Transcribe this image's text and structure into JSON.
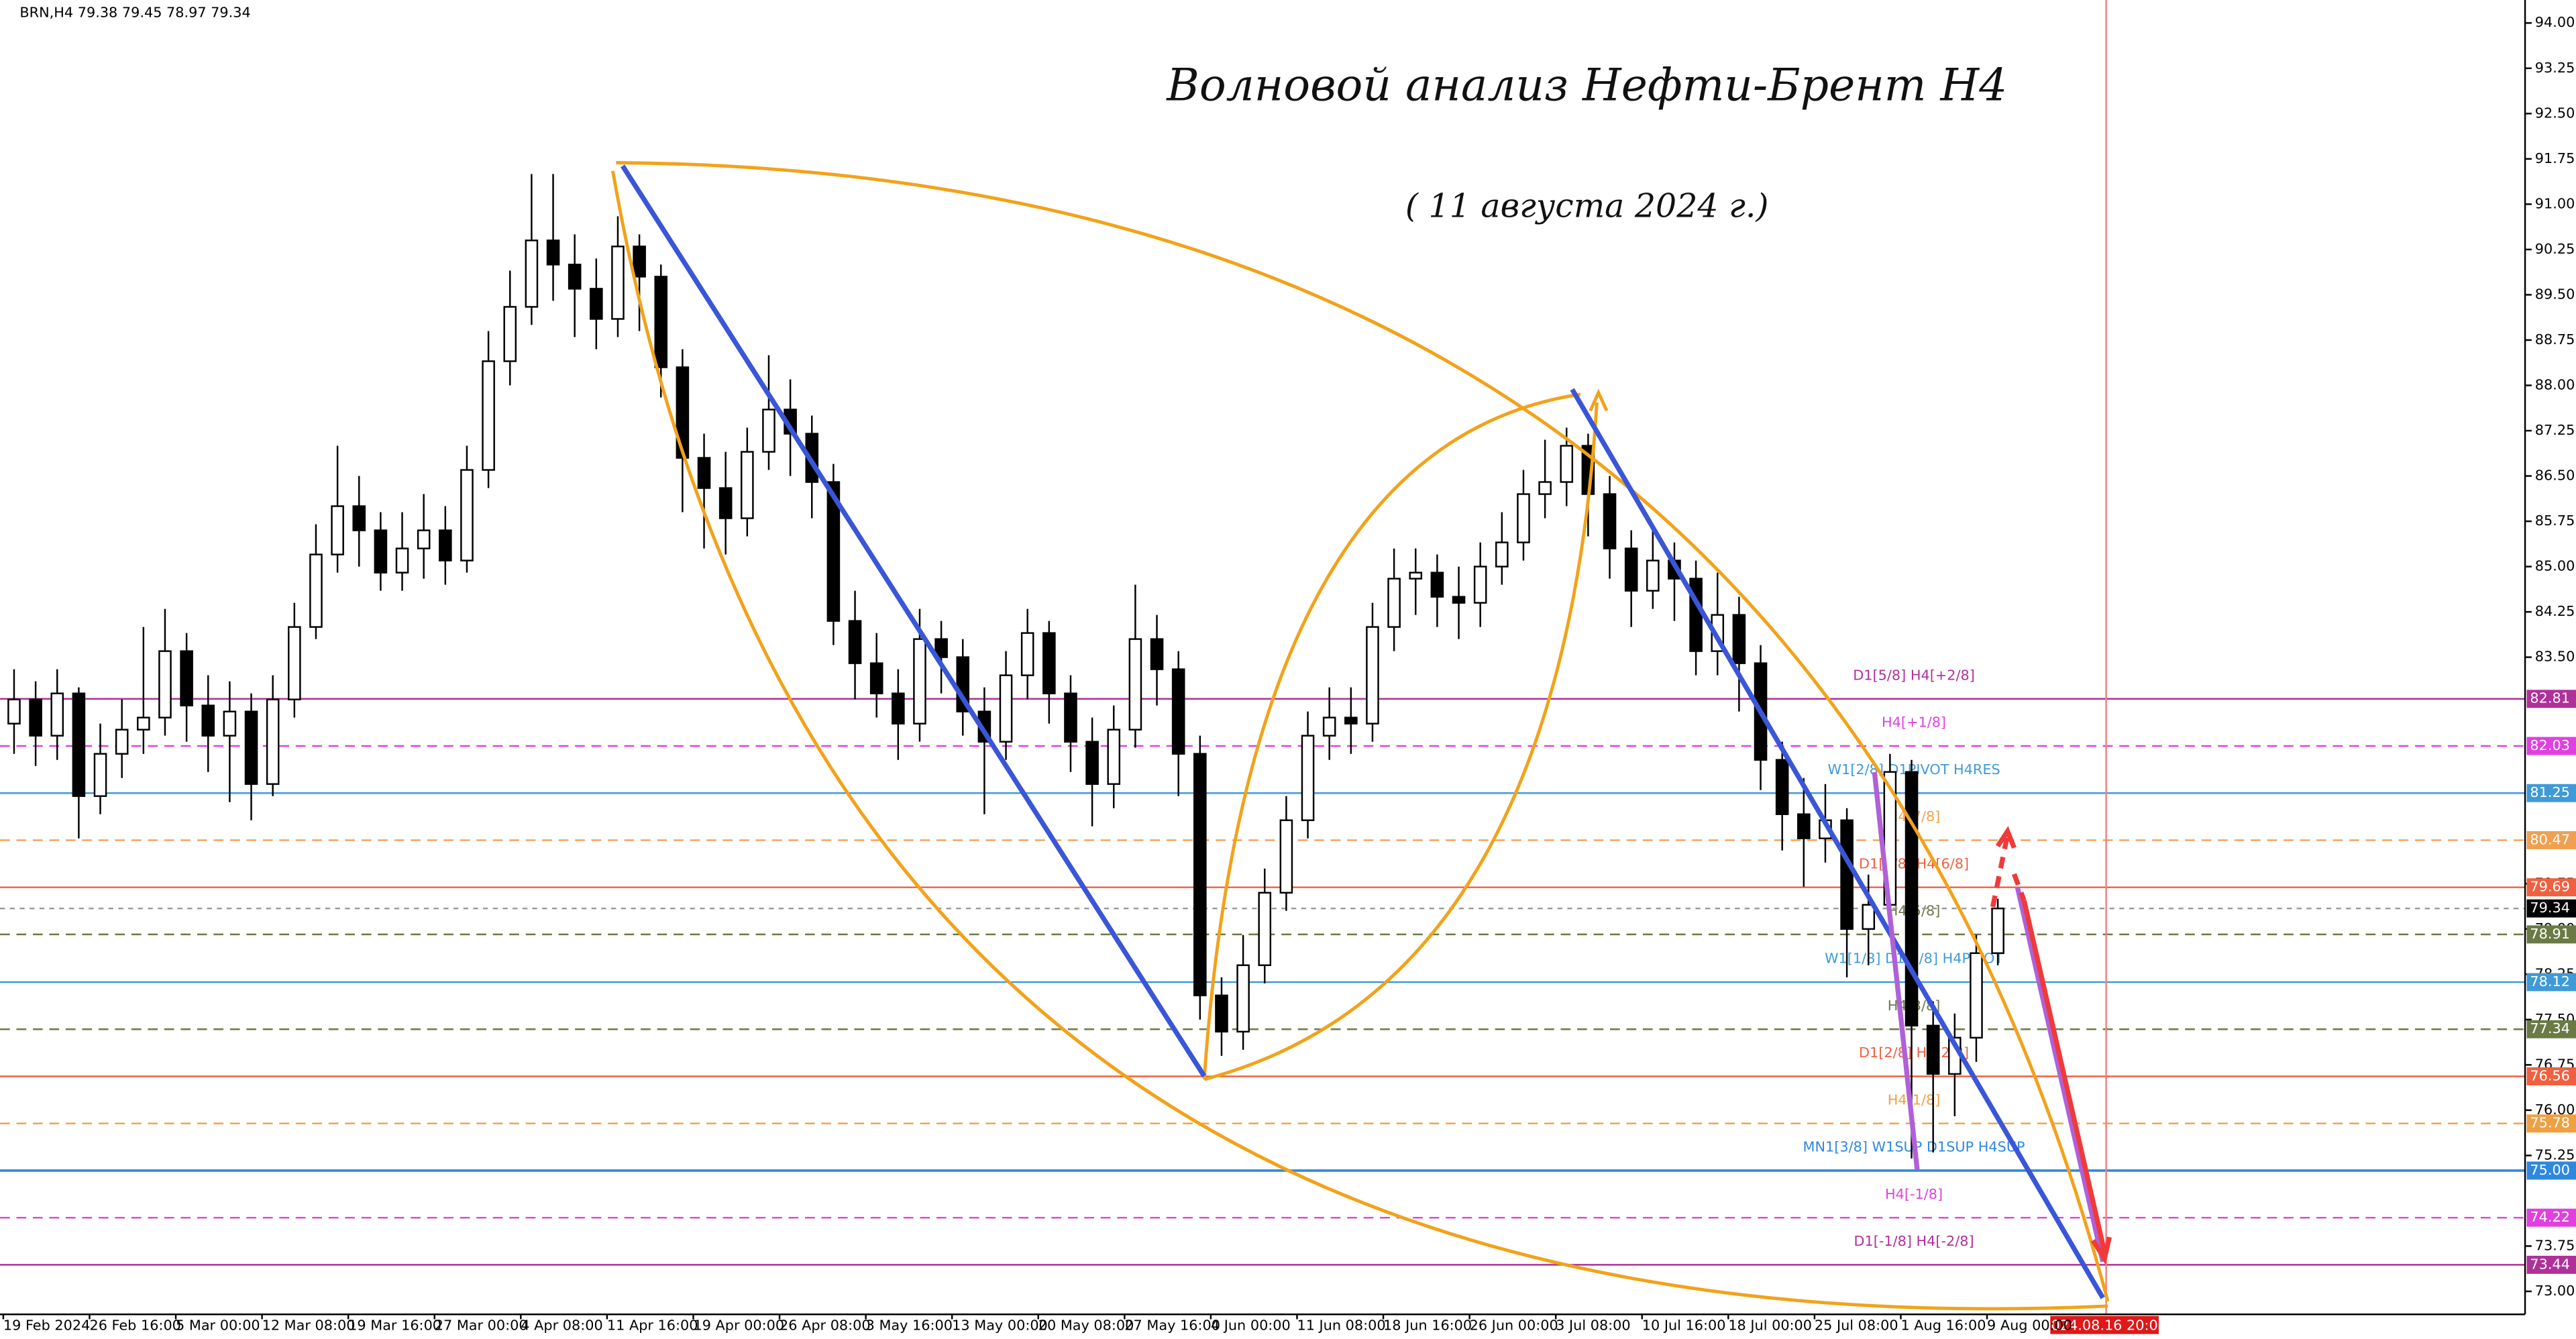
{
  "chart_data": {
    "type": "candlestick",
    "header": "BRN,H4  79.38 79.45 78.97 79.34",
    "title": "Волновой анализ Нефти-Брент H4",
    "subtitle": "( 11 августа 2024 г.)",
    "cursor_label": "2024.08.16 20:00",
    "categories": [
      "19 Feb 2024",
      null,
      null,
      null,
      "26 Feb 16:00",
      null,
      null,
      null,
      "5 Mar 00:00",
      null,
      null,
      null,
      "12 Mar 08:00",
      null,
      null,
      null,
      "19 Mar 16:00",
      null,
      null,
      null,
      "27 Mar 00:00",
      null,
      null,
      null,
      "4 Apr 08:00",
      null,
      null,
      null,
      "11 Apr 16:00",
      null,
      null,
      null,
      "19 Apr 00:00",
      null,
      null,
      null,
      "26 Apr 08:00",
      null,
      null,
      null,
      "3 May 16:00",
      null,
      null,
      null,
      "13 May 00:00",
      null,
      null,
      null,
      "20 May 08:00",
      null,
      null,
      null,
      "27 May 16:00",
      null,
      null,
      null,
      "4 Jun 00:00",
      null,
      null,
      null,
      "11 Jun 08:00",
      null,
      null,
      null,
      "18 Jun 16:00",
      null,
      null,
      null,
      "26 Jun 00:00",
      null,
      null,
      null,
      "3 Jul 08:00",
      null,
      null,
      null,
      "10 Jul 16:00",
      null,
      null,
      null,
      "18 Jul 00:00",
      null,
      null,
      null,
      "25 Jul 08:00",
      null,
      null,
      null,
      "1 Aug 16:00",
      null,
      null,
      null,
      "9 Aug 00:00"
    ],
    "open": [
      82.4,
      82.8,
      82.2,
      82.9,
      81.2,
      81.9,
      82.3,
      82.5,
      83.6,
      82.7,
      82.2,
      82.6,
      81.4,
      82.8,
      84.0,
      85.2,
      86.0,
      85.6,
      84.9,
      85.3,
      85.6,
      85.1,
      86.6,
      88.4,
      89.3,
      90.4,
      90.0,
      89.6,
      89.1,
      90.3,
      89.8,
      88.3,
      86.8,
      86.3,
      85.8,
      86.9,
      87.6,
      87.2,
      86.4,
      84.1,
      83.4,
      82.9,
      82.4,
      83.8,
      83.5,
      82.6,
      82.1,
      83.2,
      83.9,
      82.9,
      82.1,
      81.4,
      82.3,
      83.8,
      83.3,
      81.9,
      77.9,
      77.3,
      78.4,
      79.6,
      80.8,
      82.2,
      82.5,
      82.4,
      84.0,
      84.8,
      84.9,
      84.5,
      84.4,
      85.0,
      85.4,
      86.2,
      86.4,
      87.0,
      86.2,
      85.3,
      84.6,
      85.1,
      84.8,
      83.6,
      84.2,
      83.4,
      81.8,
      80.9,
      80.5,
      80.8,
      79.0,
      79.4,
      81.6,
      77.4,
      76.6,
      77.2,
      78.6
    ],
    "high": [
      83.3,
      83.1,
      83.3,
      83.0,
      82.4,
      82.8,
      84.0,
      84.3,
      83.9,
      83.2,
      83.1,
      82.9,
      83.2,
      84.4,
      85.7,
      87.0,
      86.5,
      85.9,
      85.9,
      86.2,
      86.0,
      87.0,
      88.9,
      89.9,
      91.5,
      91.5,
      90.5,
      90.1,
      90.8,
      90.5,
      90.0,
      88.6,
      87.2,
      86.9,
      87.3,
      88.5,
      88.1,
      87.5,
      86.7,
      84.6,
      83.9,
      83.3,
      84.3,
      84.1,
      83.8,
      83.0,
      83.6,
      84.3,
      84.1,
      83.2,
      82.5,
      82.7,
      84.7,
      84.2,
      83.6,
      82.2,
      78.2,
      78.9,
      80.0,
      81.2,
      82.6,
      83.0,
      83.0,
      84.4,
      85.3,
      85.3,
      85.2,
      85.0,
      85.4,
      85.9,
      86.6,
      87.1,
      87.3,
      87.2,
      86.5,
      85.6,
      85.6,
      85.4,
      85.1,
      84.9,
      84.5,
      83.7,
      82.1,
      81.5,
      81.4,
      81.0,
      79.9,
      81.9,
      81.8,
      77.8,
      77.6,
      78.9,
      79.5
    ],
    "low": [
      81.9,
      81.7,
      81.8,
      80.5,
      80.9,
      81.5,
      81.9,
      82.2,
      82.1,
      81.6,
      81.1,
      80.8,
      81.2,
      82.5,
      83.8,
      84.9,
      85.0,
      84.6,
      84.6,
      84.8,
      84.7,
      84.9,
      86.3,
      88.0,
      89.0,
      89.4,
      88.8,
      88.6,
      88.8,
      88.9,
      87.8,
      85.9,
      85.3,
      85.2,
      85.5,
      86.6,
      86.5,
      85.8,
      83.7,
      82.8,
      82.5,
      81.8,
      82.1,
      82.9,
      82.2,
      80.9,
      81.8,
      82.8,
      82.4,
      81.6,
      80.7,
      81.0,
      82.0,
      82.7,
      81.2,
      77.5,
      76.9,
      77.0,
      78.1,
      79.3,
      80.5,
      81.8,
      81.9,
      82.1,
      83.6,
      84.2,
      84.0,
      83.8,
      84.0,
      84.7,
      85.1,
      85.8,
      86.0,
      85.5,
      84.8,
      84.0,
      84.3,
      84.1,
      83.2,
      83.2,
      82.6,
      81.3,
      80.3,
      79.7,
      80.1,
      78.2,
      78.4,
      79.1,
      75.2,
      75.3,
      75.9,
      76.8,
      78.4
    ],
    "close": [
      82.8,
      82.2,
      82.9,
      81.2,
      81.9,
      82.3,
      82.5,
      83.6,
      82.7,
      82.2,
      82.6,
      81.4,
      82.8,
      84.0,
      85.2,
      86.0,
      85.6,
      84.9,
      85.3,
      85.6,
      85.1,
      86.6,
      88.4,
      89.3,
      90.4,
      90.0,
      89.6,
      89.1,
      90.3,
      89.8,
      88.3,
      86.8,
      86.3,
      85.8,
      86.9,
      87.6,
      87.2,
      86.4,
      84.1,
      83.4,
      82.9,
      82.4,
      83.8,
      83.5,
      82.6,
      82.1,
      83.2,
      83.9,
      82.9,
      82.1,
      81.4,
      82.3,
      83.8,
      83.3,
      81.9,
      77.9,
      77.3,
      78.4,
      79.6,
      80.8,
      82.2,
      82.5,
      82.4,
      84.0,
      84.8,
      84.9,
      84.5,
      84.4,
      85.0,
      85.4,
      86.2,
      86.4,
      87.0,
      86.2,
      85.3,
      84.6,
      85.1,
      84.8,
      83.6,
      84.2,
      83.4,
      81.8,
      80.9,
      80.5,
      80.8,
      79.0,
      79.4,
      81.6,
      77.4,
      76.6,
      77.2,
      78.6,
      79.34
    ],
    "ylim": [
      72.62,
      94.38
    ],
    "yticks": [
      {
        "value": 94,
        "label": "94.00"
      },
      93.25,
      {
        "value": 92.5,
        "label": "92.50"
      },
      91.75,
      {
        "value": 91,
        "label": "91.00"
      },
      90.25,
      {
        "value": 89.5,
        "label": "89.50"
      },
      88.75,
      {
        "value": 88,
        "label": "88.00"
      },
      87.25,
      {
        "value": 86.5,
        "label": "86.50"
      },
      85.75,
      {
        "value": 85,
        "label": "85.00"
      },
      84.25,
      {
        "value": 83.5,
        "label": "83.50"
      },
      79.75,
      {
        "value": 79,
        "label": "79.00"
      },
      78.25,
      {
        "value": 77.5,
        "label": "77.50"
      },
      76.75,
      {
        "value": 76,
        "label": "76.00"
      },
      75.25,
      73.75,
      {
        "value": 73,
        "label": "73.00"
      }
    ],
    "levels": [
      {
        "price": 82.81,
        "text": "D1[5/8] H4[+2/8]",
        "color": "#b0309a",
        "dashed": false
      },
      {
        "price": 82.03,
        "text": "H4[+1/8]",
        "color": "#e040e0",
        "dashed": true
      },
      {
        "price": 81.25,
        "text": "W1[2/8] D1PIVOT H4RES",
        "color": "#3f9ad6",
        "dashed": false
      },
      {
        "price": 80.47,
        "text": "H4[7/8]",
        "color": "#f0a050",
        "dashed": true
      },
      {
        "price": 79.69,
        "text": "D1[4/8] H4[6/8]",
        "color": "#f06040",
        "dashed": false
      },
      {
        "price": 78.91,
        "text": "H4[5/8]",
        "color": "#6b7a45",
        "dashed": true
      },
      {
        "price": 78.12,
        "text": "W1[1/8] D1[3/8] H4PIVOT",
        "color": "#3f9ad6",
        "dashed": false
      },
      {
        "price": 77.34,
        "text": "H4[3/8]",
        "color": "#6b7a45",
        "dashed": true
      },
      {
        "price": 76.56,
        "text": "D1[2/8] H4[2/8]",
        "color": "#f06040",
        "dashed": false
      },
      {
        "price": 75.78,
        "text": "H4[1/8]",
        "color": "#f0a040",
        "dashed": true
      },
      {
        "price": {
          "value": 75,
          "label": "75.00"
        },
        "text": "MN1[3/8] W1SUP D1SUP H4SUP",
        "color": "#2f88e0",
        "dashed": false
      },
      {
        "price": 74.22,
        "text": "H4[-1/8]",
        "color": "#e040e0",
        "dashed": true
      },
      {
        "price": 73.44,
        "text": "D1[-1/8] H4[-2/8]",
        "color": "#b0309a",
        "dashed": false
      }
    ],
    "bid": 79.34,
    "bull_color": "#ffffff",
    "bear_color": "#000000"
  }
}
